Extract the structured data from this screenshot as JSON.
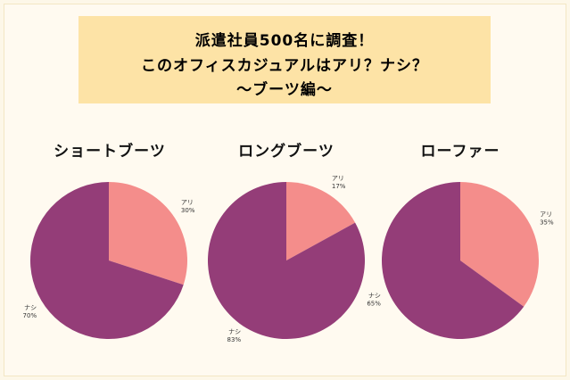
{
  "header": {
    "line1": "派遣社員500名に調査！",
    "line2": "このオフィスカジュアルはアリ？ナシ？",
    "line3": "～ブーツ編～"
  },
  "colors": {
    "ari": "#f48d8b",
    "nashi": "#943d78",
    "header_bg": "#fde3a6"
  },
  "chart_data": [
    {
      "type": "pie",
      "title": "ショートブーツ",
      "slices": [
        {
          "label": "アリ",
          "value": 30,
          "pct_label": "30%",
          "color": "#f48d8b"
        },
        {
          "label": "ナシ",
          "value": 70,
          "pct_label": "70%",
          "color": "#943d78"
        }
      ]
    },
    {
      "type": "pie",
      "title": "ロングブーツ",
      "slices": [
        {
          "label": "アリ",
          "value": 17,
          "pct_label": "17%",
          "color": "#f48d8b"
        },
        {
          "label": "ナシ",
          "value": 83,
          "pct_label": "83%",
          "color": "#943d78"
        }
      ]
    },
    {
      "type": "pie",
      "title": "ローファー",
      "slices": [
        {
          "label": "アリ",
          "value": 35,
          "pct_label": "35%",
          "color": "#f48d8b"
        },
        {
          "label": "ナシ",
          "value": 65,
          "pct_label": "65%",
          "color": "#943d78"
        }
      ]
    }
  ]
}
